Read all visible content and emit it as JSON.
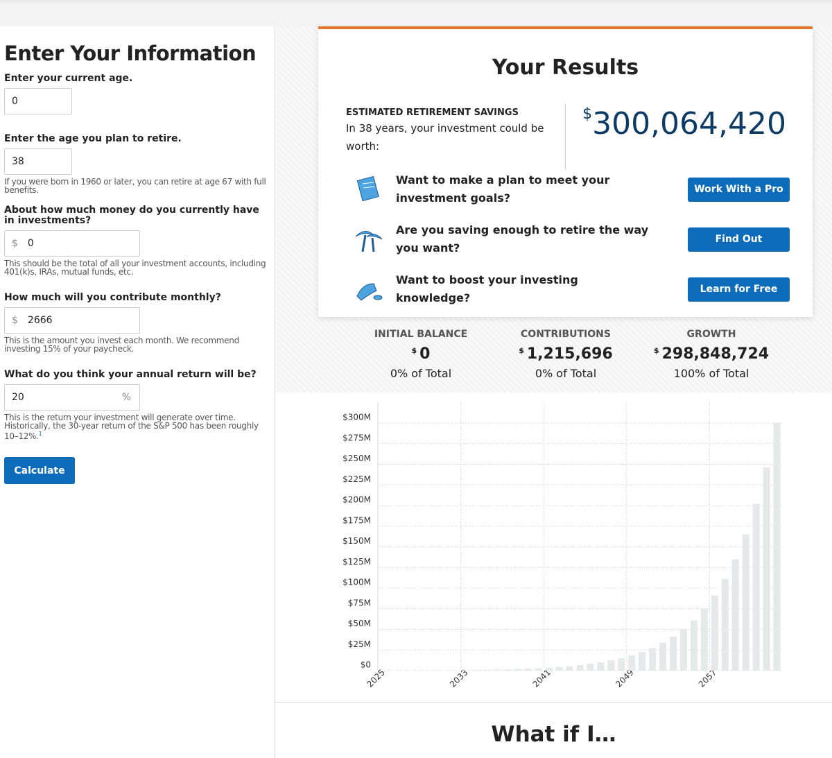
{
  "form": {
    "title": "Enter Your Information",
    "fields": [
      {
        "label": "Enter your current age.",
        "value": "0"
      },
      {
        "label": "Enter the age you plan to retire.",
        "value": "38",
        "note": "If you were born in 1960 or later, you can retire at age 67 with full benefits."
      },
      {
        "label": "About how much money do you currently have in investments?",
        "prefix": "$",
        "value": "0",
        "note": "This should be the total of all your investment accounts, including 401(k)s, IRAs, mutual funds, etc."
      },
      {
        "label": "How much will you contribute monthly?",
        "prefix": "$",
        "value": "2666",
        "note": "This is the amount you invest each month. We recommend investing 15% of your paycheck."
      },
      {
        "label": "What do you think your annual return will be?",
        "value": "20",
        "suffix": "%",
        "note": "This is the return your investment will generate over time. Historically, the 30-year return of the S&P 500 has been roughly 10–12%.",
        "footnote": "1"
      }
    ],
    "button": "Calculate"
  },
  "results": {
    "title": "Your Results",
    "label": "ESTIMATED RETIREMENT SAVINGS",
    "text": "In 38 years, your investment could be worth:",
    "currency": "$",
    "amount": "300,064,420",
    "actions": [
      {
        "text": "Want to make a plan to meet your investment goals?",
        "button": "Work With a Pro"
      },
      {
        "text": "Are you saving enough to retire the way you want?",
        "button": "Find Out"
      },
      {
        "text": "Want to boost your investing knowledge?",
        "button": "Learn for Free"
      }
    ],
    "stats": [
      {
        "label": "INITIAL BALANCE",
        "currency": "$",
        "value": "0",
        "share": "0% of Total"
      },
      {
        "label": "CONTRIBUTIONS",
        "currency": "$",
        "value": "1,215,696",
        "share": "0% of Total"
      },
      {
        "label": "GROWTH",
        "currency": "$",
        "value": "298,848,724",
        "share": "100% of Total"
      }
    ]
  },
  "chart_data": {
    "type": "bar",
    "categories": [
      "2025",
      null,
      null,
      null,
      null,
      null,
      null,
      null,
      "2033",
      null,
      null,
      null,
      null,
      null,
      null,
      null,
      "2041",
      null,
      null,
      null,
      null,
      null,
      null,
      null,
      "2049",
      null,
      null,
      null,
      null,
      null,
      null,
      null,
      "2057",
      null,
      null,
      null,
      null,
      null,
      null
    ],
    "values": [
      0,
      0.03,
      0.07,
      0.11,
      0.17,
      0.25,
      0.34,
      0.45,
      0.58,
      0.75,
      0.95,
      1.2,
      1.5,
      1.9,
      2.4,
      2.9,
      3.6,
      4.5,
      5.5,
      6.7,
      8.2,
      10,
      12.3,
      15,
      18.5,
      22.5,
      27.5,
      34,
      41,
      50,
      61,
      75,
      91,
      111,
      135,
      165,
      202,
      246,
      300
    ],
    "color": "#e6e9e9",
    "ylim": [
      0,
      300
    ],
    "yticks": [
      {
        "value": 0,
        "label": "$0"
      },
      {
        "value": 25,
        "label": "$25M"
      },
      {
        "value": 50,
        "label": "$50M"
      },
      {
        "value": 75,
        "label": "$75M"
      },
      {
        "value": 100,
        "label": "$100M"
      },
      {
        "value": 125,
        "label": "$125M"
      },
      {
        "value": 150,
        "label": "$150M"
      },
      {
        "value": 175,
        "label": "$175M"
      },
      {
        "value": 200,
        "label": "$200M"
      },
      {
        "value": 225,
        "label": "$225M"
      },
      {
        "value": 250,
        "label": "$250M"
      },
      {
        "value": 275,
        "label": "$275M"
      },
      {
        "value": 300,
        "label": "$300M"
      }
    ],
    "grid": true
  },
  "footer": {
    "title": "What if I…"
  }
}
